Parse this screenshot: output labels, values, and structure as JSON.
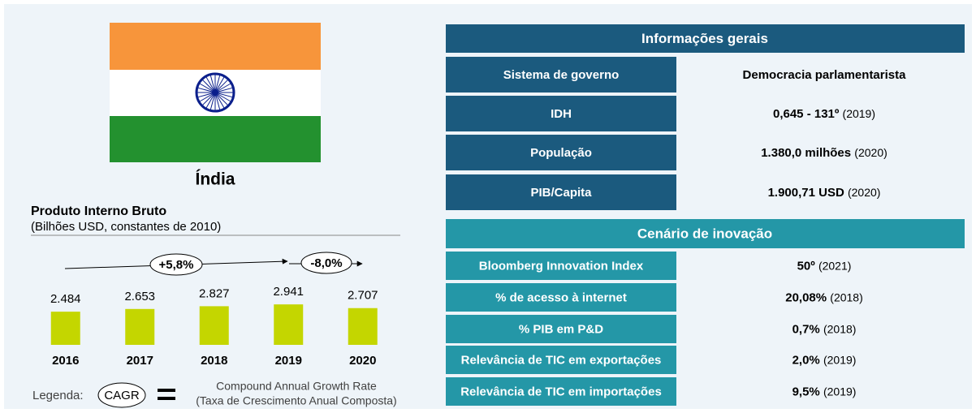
{
  "country": "Índia",
  "chart_data": {
    "type": "bar",
    "title": "Produto Interno Bruto",
    "subtitle": "(Bilhões USD, constantes de 2010)",
    "categories": [
      "2016",
      "2017",
      "2018",
      "2019",
      "2020"
    ],
    "values": [
      2484,
      2653,
      2827,
      2941,
      2707
    ],
    "value_labels": [
      "2.484",
      "2.653",
      "2.827",
      "2.941",
      "2.707"
    ],
    "color": "#c4d600",
    "ylim": [
      400,
      3000
    ],
    "annotations": [
      "+5,8%",
      "-8,0%"
    ]
  },
  "legend": {
    "label": "Legenda:",
    "symbol": "CAGR",
    "meaning": "Compound Annual Growth Rate",
    "translation": "(Taxa de Crescimento Anual Composta)"
  },
  "general_info": {
    "title": "Informações gerais",
    "rows": [
      {
        "label": "Sistema de governo",
        "value": "Democracia parlamentarista"
      },
      {
        "label": "IDH",
        "value": "0,645 - 131º",
        "note": "(2019)"
      },
      {
        "label": "População",
        "value": "1.380,0 milhões",
        "note": "(2020)"
      },
      {
        "label": "PIB/Capita",
        "value": "1.900,71 USD",
        "note": "(2020)"
      }
    ]
  },
  "innovation": {
    "title": "Cenário de inovação",
    "rows": [
      {
        "label": "Bloomberg Innovation Index",
        "value": "50º",
        "note": "(2021)"
      },
      {
        "label": "% de acesso à internet",
        "value": "20,08%",
        "note": "(2018)"
      },
      {
        "label": "% PIB em P&D",
        "value": "0,7%",
        "note": "(2018)"
      },
      {
        "label": "Relevância de TIC em exportações",
        "value": "2,0%",
        "note": "(2019)"
      },
      {
        "label": "Relevância de TIC em importações",
        "value": "9,5%",
        "note": "(2019)"
      }
    ]
  }
}
